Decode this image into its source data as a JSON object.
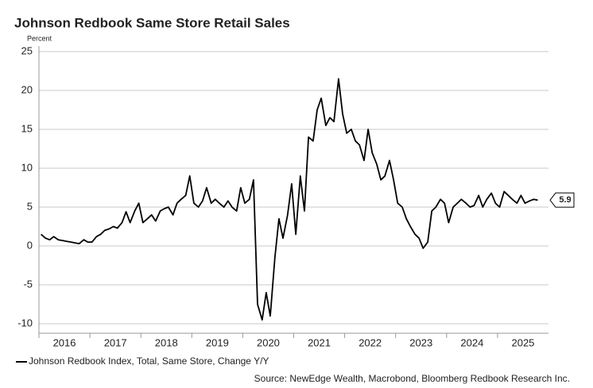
{
  "chart_data": {
    "type": "line",
    "title": "Johnson Redbook Same Store Retail Sales",
    "ylabel": "Percent",
    "source": "Source: NewEdge Wealth, Macrobond, Bloomberg Redbook Research Inc.",
    "x": [
      2016.04,
      2016.13,
      2016.21,
      2016.29,
      2016.38,
      2016.46,
      2016.54,
      2016.63,
      2016.71,
      2016.79,
      2016.88,
      2016.96,
      2017.04,
      2017.13,
      2017.21,
      2017.29,
      2017.38,
      2017.46,
      2017.54,
      2017.63,
      2017.71,
      2017.79,
      2017.88,
      2017.96,
      2018.04,
      2018.13,
      2018.21,
      2018.29,
      2018.38,
      2018.46,
      2018.54,
      2018.63,
      2018.71,
      2018.79,
      2018.88,
      2018.96,
      2019.04,
      2019.13,
      2019.21,
      2019.29,
      2019.38,
      2019.46,
      2019.54,
      2019.63,
      2019.71,
      2019.79,
      2019.88,
      2019.96,
      2020.04,
      2020.13,
      2020.21,
      2020.29,
      2020.38,
      2020.46,
      2020.54,
      2020.63,
      2020.71,
      2020.79,
      2020.88,
      2020.96,
      2021.04,
      2021.13,
      2021.21,
      2021.29,
      2021.38,
      2021.46,
      2021.54,
      2021.63,
      2021.71,
      2021.79,
      2021.88,
      2021.96,
      2022.04,
      2022.13,
      2022.21,
      2022.29,
      2022.38,
      2022.46,
      2022.54,
      2022.63,
      2022.71,
      2022.79,
      2022.88,
      2022.96,
      2023.04,
      2023.13,
      2023.21,
      2023.29,
      2023.38,
      2023.46,
      2023.54,
      2023.63,
      2023.71,
      2023.79,
      2023.88,
      2023.96,
      2024.04,
      2024.13,
      2024.21,
      2024.29,
      2024.38,
      2024.46,
      2024.54,
      2024.63,
      2024.71,
      2024.79,
      2024.88,
      2024.96,
      2025.04,
      2025.13,
      2025.21,
      2025.29,
      2025.38,
      2025.46,
      2025.54,
      2025.63,
      2025.71,
      2025.79
    ],
    "series": [
      {
        "name": "Johnson Redbook Index, Total, Same Store, Change Y/Y",
        "color": "#000000",
        "values": [
          1.5,
          1.0,
          0.8,
          1.2,
          0.8,
          0.7,
          0.6,
          0.5,
          0.4,
          0.3,
          0.8,
          0.5,
          0.5,
          1.2,
          1.5,
          2.0,
          2.2,
          2.5,
          2.3,
          3.0,
          4.4,
          3.0,
          4.5,
          5.5,
          3.0,
          3.5,
          4.0,
          3.2,
          4.5,
          4.8,
          5.0,
          4.0,
          5.5,
          6.0,
          6.5,
          9.0,
          5.5,
          5.0,
          5.8,
          7.5,
          5.5,
          6.0,
          5.5,
          5.0,
          5.8,
          5.0,
          4.5,
          7.5,
          5.5,
          6.0,
          8.5,
          -7.5,
          -9.5,
          -6.0,
          -9.0,
          -1.5,
          3.5,
          1.0,
          4.0,
          8.0,
          1.5,
          9.0,
          4.5,
          14.0,
          13.5,
          17.5,
          19.0,
          15.5,
          16.5,
          16.0,
          21.5,
          17.0,
          14.5,
          15.0,
          13.5,
          13.0,
          11.0,
          15.0,
          12.0,
          10.5,
          8.5,
          9.0,
          11.0,
          8.5,
          5.5,
          5.0,
          3.5,
          2.5,
          1.5,
          1.0,
          -0.3,
          0.5,
          4.5,
          5.0,
          6.0,
          5.5,
          3.0,
          5.0,
          5.5,
          6.0,
          5.5,
          5.0,
          5.2,
          6.5,
          5.0,
          6.0,
          6.8,
          5.5,
          5.0,
          7.0,
          6.5,
          6.0,
          5.5,
          6.5,
          5.5,
          5.8,
          6.0,
          5.9
        ]
      }
    ],
    "xlim": [
      2016,
      2026
    ],
    "xticks": [
      2016,
      2017,
      2018,
      2019,
      2020,
      2021,
      2022,
      2023,
      2024,
      2025
    ],
    "ylim": [
      -10,
      25
    ],
    "yticks": [
      25,
      20,
      15,
      10,
      5,
      0,
      -5,
      -10
    ],
    "grid": true
  }
}
